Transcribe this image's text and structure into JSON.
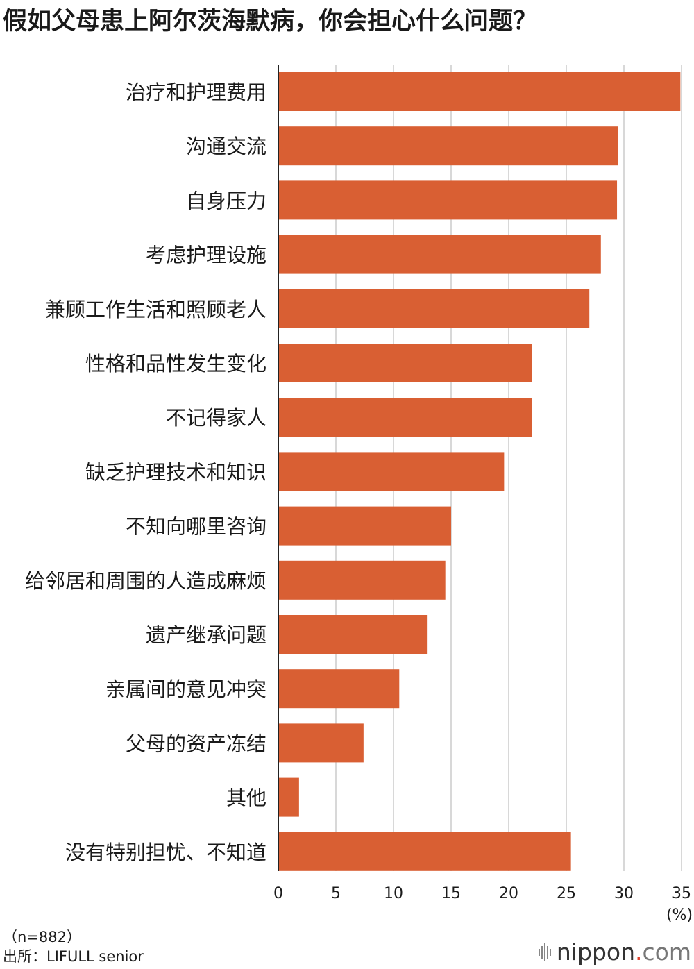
{
  "title": "假如父母患上阿尔茨海默病，你会担心什么问题？",
  "notes": {
    "sample": "（n=882）",
    "source": "出所：LIFULL senior"
  },
  "logo": {
    "name": "nippon",
    "dot": ".",
    "suffix": "com"
  },
  "colors": {
    "bar": "#d95f33",
    "grid": "#cccccc",
    "axis": "#222222"
  },
  "chart_data": {
    "type": "bar",
    "orientation": "horizontal",
    "title": "假如父母患上阿尔茨海默病，你会担心什么问题？",
    "unit_label": "(%)",
    "xlim": [
      0,
      35
    ],
    "xticks": [
      "0",
      "5",
      "10",
      "15",
      "20",
      "25",
      "30",
      "35"
    ],
    "grid": true,
    "categories": [
      "治疗和护理费用",
      "沟通交流",
      "自身压力",
      "考虑护理设施",
      "兼顾工作生活和照顾老人",
      "性格和品性发生变化",
      "不记得家人",
      "缺乏护理技术和知识",
      "不知向哪里咨询",
      "给邻居和周围的人造成麻烦",
      "遗产继承问题",
      "亲属间的意见冲突",
      "父母的资产冻结",
      "其他",
      "没有特别担忧、不知道"
    ],
    "values": [
      34.9,
      29.5,
      29.4,
      28.0,
      27.0,
      22.0,
      22.0,
      19.6,
      15.0,
      14.5,
      12.9,
      10.5,
      7.4,
      1.8,
      25.4
    ]
  }
}
